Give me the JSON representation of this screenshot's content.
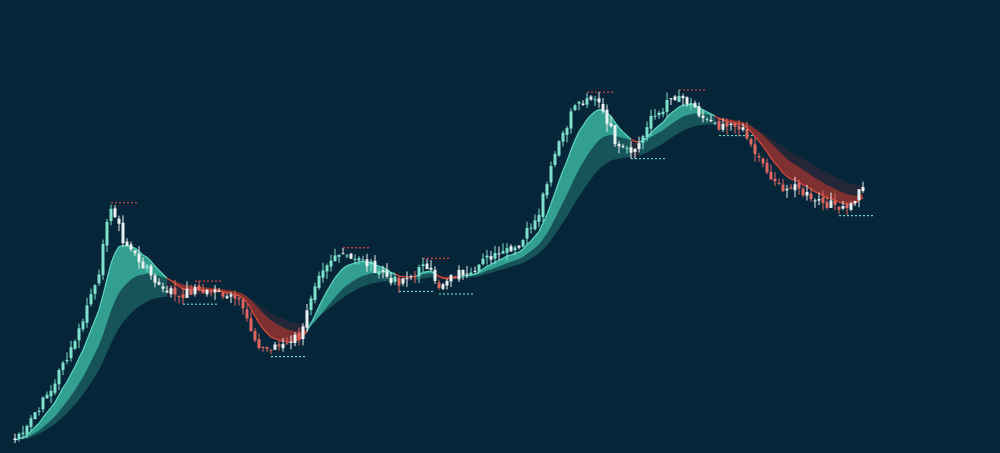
{
  "colors": {
    "background": "#052638",
    "bull_candle": "#7fe0cc",
    "bear_candle": "#e0675f",
    "neutral_candle": "#e8f0f0",
    "bull_band": "#3fbfa8",
    "bear_band": "#c0392b",
    "bull_level": "#5fe0d0",
    "bear_level": "#e04040"
  },
  "chart_data": {
    "type": "candlestick",
    "title": "",
    "xlabel": "",
    "ylabel": "",
    "grid": false,
    "legend": "none",
    "bars": 213,
    "close_path": [
      [
        0,
        13
      ],
      [
        9,
        63
      ],
      [
        16,
        123
      ],
      [
        21,
        183
      ],
      [
        24,
        248
      ],
      [
        27,
        213
      ],
      [
        31,
        193
      ],
      [
        36,
        168
      ],
      [
        41,
        158
      ],
      [
        46,
        163
      ],
      [
        56,
        158
      ],
      [
        60,
        108
      ],
      [
        64,
        103
      ],
      [
        71,
        118
      ],
      [
        76,
        173
      ],
      [
        81,
        203
      ],
      [
        86,
        193
      ],
      [
        91,
        183
      ],
      [
        96,
        168
      ],
      [
        101,
        183
      ],
      [
        104,
        188
      ],
      [
        106,
        163
      ],
      [
        110,
        178
      ],
      [
        116,
        188
      ],
      [
        121,
        203
      ],
      [
        126,
        208
      ],
      [
        131,
        243
      ],
      [
        135,
        303
      ],
      [
        140,
        348
      ],
      [
        146,
        353
      ],
      [
        150,
        313
      ],
      [
        155,
        303
      ],
      [
        159,
        333
      ],
      [
        164,
        353
      ],
      [
        167,
        353
      ],
      [
        171,
        338
      ],
      [
        176,
        323
      ],
      [
        181,
        328
      ],
      [
        186,
        293
      ],
      [
        190,
        268
      ],
      [
        196,
        263
      ],
      [
        204,
        248
      ],
      [
        209,
        248
      ],
      [
        212,
        268
      ]
    ]
  }
}
